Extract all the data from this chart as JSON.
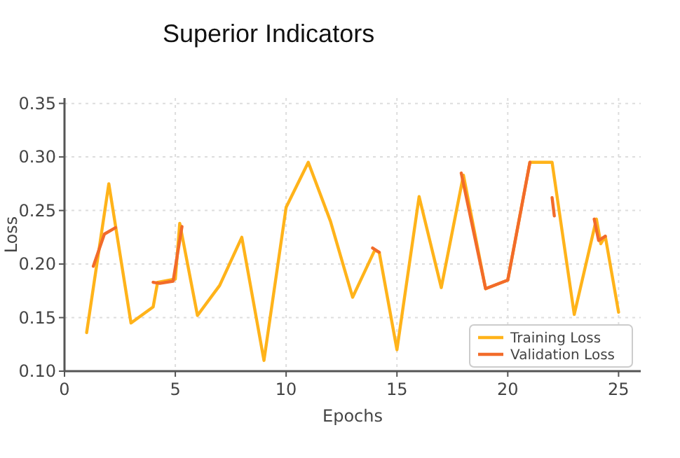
{
  "chart_data": {
    "type": "line",
    "title": "Superior Indicators",
    "xlabel": "Epochs",
    "ylabel": "Loss",
    "xlim": [
      0,
      26
    ],
    "ylim": [
      0.1,
      0.355
    ],
    "xticks": [
      0,
      5,
      10,
      15,
      20,
      25
    ],
    "yticks": [
      {
        "value": 0.1,
        "label": "0.10"
      },
      {
        "value": 0.15,
        "label": "0.15"
      },
      {
        "value": 0.2,
        "label": "0.20"
      },
      {
        "value": 0.25,
        "label": "0.25"
      },
      {
        "value": 0.3,
        "label": "0.30"
      },
      {
        "value": 0.35,
        "label": "0.35"
      }
    ],
    "grid": true,
    "legend": "bottom right",
    "line_style": "solid",
    "marker": "none",
    "series": [
      {
        "name": "Training Loss",
        "color": "#ffb31a",
        "x": [
          1,
          2,
          3,
          4,
          4.2,
          5,
          5.2,
          6,
          7,
          8,
          9,
          10,
          11,
          12,
          13,
          14,
          14.2,
          15,
          16,
          17,
          18,
          19,
          20,
          21,
          22,
          23,
          24,
          24.2,
          24.4,
          25
        ],
        "values": [
          0.136,
          0.275,
          0.145,
          0.16,
          0.183,
          0.186,
          0.238,
          0.152,
          0.18,
          0.225,
          0.11,
          0.253,
          0.295,
          0.24,
          0.169,
          0.213,
          0.211,
          0.12,
          0.263,
          0.178,
          0.283,
          0.177,
          0.185,
          0.295,
          0.295,
          0.153,
          0.242,
          0.219,
          0.226,
          0.155
        ]
      },
      {
        "name": "Validation Loss",
        "color": "#f26b2a",
        "x": [
          1.3,
          1.8,
          2.3,
          null,
          4,
          4.3,
          4.9,
          5.3,
          null,
          13.9,
          14.2,
          null,
          17.9,
          19,
          20,
          21,
          null,
          22.0,
          22.1,
          null,
          23.9,
          24.1,
          24.4
        ],
        "values": [
          0.198,
          0.228,
          0.234,
          null,
          0.183,
          0.182,
          0.184,
          0.235,
          null,
          0.215,
          0.211,
          null,
          0.285,
          0.177,
          0.185,
          0.295,
          null,
          0.262,
          0.245,
          null,
          0.242,
          0.222,
          0.226
        ]
      }
    ]
  }
}
